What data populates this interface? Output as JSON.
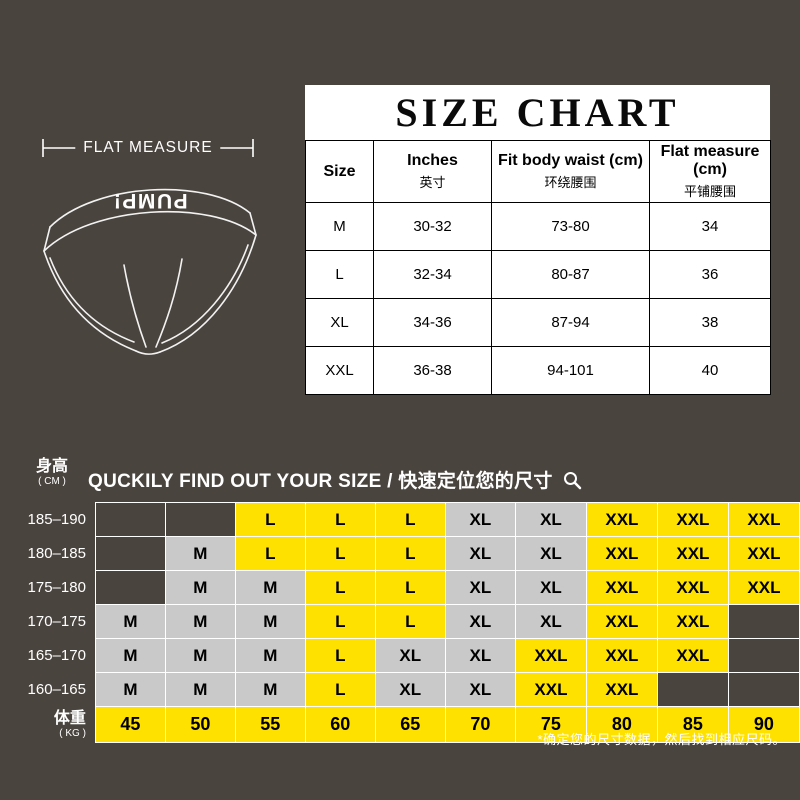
{
  "colors": {
    "bg": "#4a443e",
    "yellow": "#ffe100",
    "gray": "#c9c9c9",
    "white": "#ffffff",
    "ink": "#000000"
  },
  "product": {
    "flat_measure_label": "FLAT MEASURE",
    "brand_logo": "PUMP!"
  },
  "size_chart": {
    "title": "SIZE CHART"
  },
  "finder": {
    "title": "QUCKILY FIND OUT YOUR SIZE / 快速定位您的尺寸",
    "height_label": "身高",
    "height_unit": "( CM )",
    "weight_label": "体重",
    "weight_unit": "( KG )",
    "note": "*确定您的尺寸数据，然后找到相应尺码。"
  },
  "chart_data": [
    {
      "type": "table",
      "title": "SIZE CHART",
      "columns": [
        {
          "en": "Size",
          "zh": ""
        },
        {
          "en": "Inches",
          "zh": "英寸"
        },
        {
          "en": "Fit body waist (cm)",
          "zh": "环绕腰围"
        },
        {
          "en": "Flat measure (cm)",
          "zh": "平铺腰围"
        }
      ],
      "rows": [
        [
          "M",
          "30-32",
          "73-80",
          "34"
        ],
        [
          "L",
          "32-34",
          "80-87",
          "36"
        ],
        [
          "XL",
          "34-36",
          "87-94",
          "38"
        ],
        [
          "XXL",
          "36-38",
          "94-101",
          "40"
        ]
      ]
    },
    {
      "type": "heatmap",
      "title": "QUCKILY FIND OUT YOUR SIZE / 快速定位您的尺寸",
      "x_label": "体重 (KG)",
      "y_label": "身高 (CM)",
      "x": [
        "45",
        "50",
        "55",
        "60",
        "65",
        "70",
        "75",
        "80",
        "85",
        "90"
      ],
      "y": [
        "185–190",
        "180–185",
        "175–180",
        "170–175",
        "165–170",
        "160–165"
      ],
      "values": [
        [
          "",
          "",
          "L",
          "L",
          "L",
          "XL",
          "XL",
          "XXL",
          "XXL",
          "XXL"
        ],
        [
          "",
          "M",
          "L",
          "L",
          "L",
          "XL",
          "XL",
          "XXL",
          "XXL",
          "XXL"
        ],
        [
          "",
          "M",
          "M",
          "L",
          "L",
          "XL",
          "XL",
          "XXL",
          "XXL",
          "XXL"
        ],
        [
          "M",
          "M",
          "M",
          "L",
          "L",
          "XL",
          "XL",
          "XXL",
          "XXL",
          ""
        ],
        [
          "M",
          "M",
          "M",
          "L",
          "XL",
          "XL",
          "XXL",
          "XXL",
          "XXL",
          ""
        ],
        [
          "M",
          "M",
          "M",
          "L",
          "XL",
          "XL",
          "XXL",
          "XXL",
          "",
          ""
        ]
      ],
      "cell_colors": {
        "M": "gray",
        "L": "yellow",
        "XL": "gray",
        "XXL": "yellow"
      },
      "legend_position": "none",
      "grid": true
    }
  ]
}
